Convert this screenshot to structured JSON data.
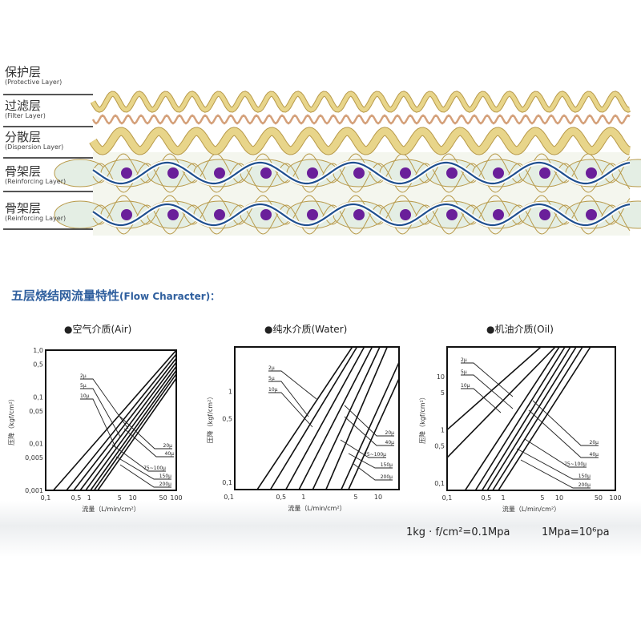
{
  "layers": [
    {
      "cn": "保护层",
      "en": "(Protective Layer)"
    },
    {
      "cn": "过滤层",
      "en": "(Filter Layer)"
    },
    {
      "cn": "分散层",
      "en": "(Dispersion Layer)"
    },
    {
      "cn": "骨架层",
      "en": "(Reinforcing Layer)"
    },
    {
      "cn": "骨架层",
      "en": "(Reinforcing Layer)"
    }
  ],
  "colors": {
    "mesh_yellow": "#e8d58a",
    "mesh_outline": "#b89a4a",
    "filter_wave": "#d4a07a",
    "blue_wire": "#1f4f8f",
    "dot": "#6a1f9a",
    "title": "#2f5f9e"
  },
  "section_title": {
    "cn": "五层烧结网流量特性",
    "en": "(Flow Character)："
  },
  "notes": [
    "1kg · f/cm²=0.1Mpa",
    "1Mpa=10⁶pa"
  ],
  "chart_data": [
    {
      "type": "line",
      "title": "●空气介质(Air)",
      "xlabel": "流量（L/min/cm²）",
      "ylabel": "压降（kgf/cm²）",
      "xscale": "log",
      "yscale": "log",
      "xlim": [
        0.1,
        100
      ],
      "ylim": [
        0.001,
        1.0
      ],
      "grid": false,
      "xticks": [
        [
          0.1,
          "0,1"
        ],
        [
          0.5,
          "0,5"
        ],
        [
          1,
          "1"
        ],
        [
          5,
          "5"
        ],
        [
          10,
          "10"
        ],
        [
          50,
          "50"
        ],
        [
          100,
          "100"
        ]
      ],
      "yticks": [
        [
          1.0,
          "1,0"
        ],
        [
          0.5,
          "0,5"
        ],
        [
          0.1,
          "0,1"
        ],
        [
          0.05,
          "0,05"
        ],
        [
          0.01,
          "0,01"
        ],
        [
          0.005,
          "0,005"
        ],
        [
          0.001,
          "0,001"
        ]
      ],
      "series": [
        {
          "name": "2µ",
          "points": [
            [
              0.15,
              0.001
            ],
            [
              100,
              1.0
            ]
          ]
        },
        {
          "name": "5µ",
          "points": [
            [
              0.3,
              0.001
            ],
            [
              100,
              0.82
            ]
          ]
        },
        {
          "name": "10µ",
          "points": [
            [
              0.44,
              0.001
            ],
            [
              100,
              0.67
            ]
          ]
        },
        {
          "name": "20µ",
          "points": [
            [
              0.62,
              0.001
            ],
            [
              100,
              0.55
            ]
          ]
        },
        {
          "name": "40µ",
          "points": [
            [
              0.83,
              0.001
            ],
            [
              100,
              0.45
            ]
          ]
        },
        {
          "name": "75~100µ",
          "points": [
            [
              1.07,
              0.001
            ],
            [
              100,
              0.37
            ]
          ]
        },
        {
          "name": "150µ",
          "points": [
            [
              1.3,
              0.001
            ],
            [
              100,
              0.31
            ]
          ]
        },
        {
          "name": "200µ",
          "points": [
            [
              1.57,
              0.001
            ],
            [
              100,
              0.25
            ]
          ]
        }
      ]
    },
    {
      "type": "line",
      "title": "●纯水介质(Water)",
      "xlabel": "流量（L/min/cm²）",
      "ylabel": "压降（kgf/cm²）",
      "xscale": "log",
      "yscale": "log",
      "xlim": [
        0.12,
        19
      ],
      "ylim": [
        0.083,
        3.1
      ],
      "grid": false,
      "xticks": [
        [
          0.1,
          "0,1"
        ],
        [
          0.5,
          "0,5"
        ],
        [
          1,
          "1"
        ],
        [
          5,
          "5"
        ],
        [
          10,
          "10"
        ]
      ],
      "yticks": [
        [
          1,
          "1"
        ],
        [
          0.5,
          "0,5"
        ],
        [
          0.1,
          "0,1"
        ]
      ],
      "series": [
        {
          "name": "2µ",
          "points": [
            [
              0.24,
              0.083
            ],
            [
              4.5,
              3.1
            ]
          ]
        },
        {
          "name": "5µ",
          "points": [
            [
              0.36,
              0.083
            ],
            [
              5.2,
              3.1
            ]
          ]
        },
        {
          "name": "10µ",
          "points": [
            [
              0.58,
              0.083
            ],
            [
              6.5,
              3.1
            ]
          ]
        },
        {
          "name": "20µ",
          "points": [
            [
              0.87,
              0.083
            ],
            [
              8.3,
              3.1
            ]
          ]
        },
        {
          "name": "40µ",
          "points": [
            [
              1.33,
              0.083
            ],
            [
              10.5,
              3.1
            ]
          ]
        },
        {
          "name": "75~100µ",
          "points": [
            [
              2.0,
              0.083
            ],
            [
              13.2,
              3.1
            ]
          ]
        },
        {
          "name": "150µ",
          "points": [
            [
              3.2,
              0.083
            ],
            [
              19,
              2.1
            ]
          ]
        },
        {
          "name": "200µ",
          "points": [
            [
              4.0,
              0.083
            ],
            [
              19,
              1.39
            ]
          ]
        }
      ]
    },
    {
      "type": "line",
      "title": "●机油介质(Oil)",
      "xlabel": "流量（L/min/cm²）",
      "ylabel": "压降（kgf/cm²）",
      "xscale": "log",
      "yscale": "log",
      "xlim": [
        0.1,
        100
      ],
      "ylim": [
        0.073,
        36
      ],
      "grid": false,
      "xticks": [
        [
          0.1,
          "0,1"
        ],
        [
          0.5,
          "0,5"
        ],
        [
          1,
          "1"
        ],
        [
          5,
          "5"
        ],
        [
          10,
          "10"
        ],
        [
          50,
          "50"
        ],
        [
          100,
          "100"
        ]
      ],
      "yticks": [
        [
          10,
          "10"
        ],
        [
          5,
          "5"
        ],
        [
          1,
          "1"
        ],
        [
          0.5,
          "0,5"
        ],
        [
          0.1,
          "0,1"
        ]
      ],
      "series": [
        {
          "name": "2µ",
          "points": [
            [
              0.1,
              1.0
            ],
            [
              4.7,
              36
            ]
          ]
        },
        {
          "name": "5µ",
          "points": [
            [
              0.1,
              0.3
            ],
            [
              8.5,
              36
            ]
          ]
        },
        {
          "name": "10µ",
          "points": [
            [
              0.21,
              0.073
            ],
            [
              10,
              36
            ]
          ]
        },
        {
          "name": "20µ",
          "points": [
            [
              0.32,
              0.073
            ],
            [
              12.6,
              36
            ]
          ]
        },
        {
          "name": "40µ",
          "points": [
            [
              0.42,
              0.073
            ],
            [
              15.8,
              36
            ]
          ]
        },
        {
          "name": "75~100µ",
          "points": [
            [
              0.52,
              0.073
            ],
            [
              20,
              36
            ]
          ]
        },
        {
          "name": "150µ",
          "points": [
            [
              0.65,
              0.073
            ],
            [
              26,
              36
            ]
          ]
        },
        {
          "name": "200µ",
          "points": [
            [
              0.82,
              0.073
            ],
            [
              36,
              36
            ]
          ]
        }
      ]
    }
  ]
}
